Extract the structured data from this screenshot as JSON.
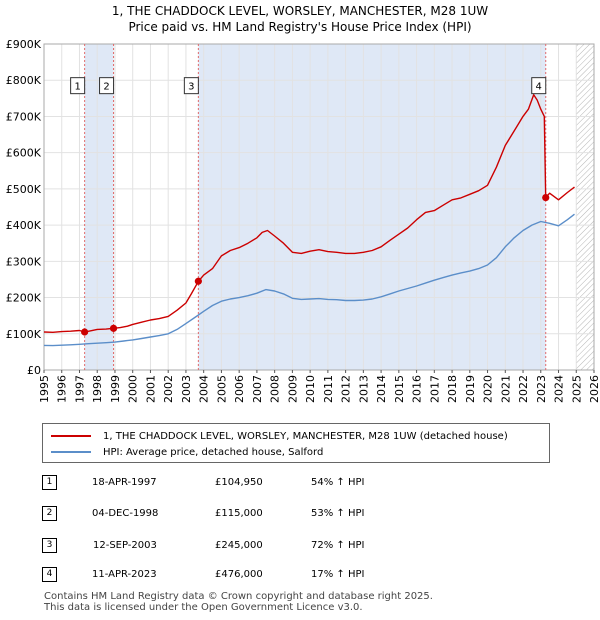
{
  "title_line1": "1, THE CHADDOCK LEVEL, WORSLEY, MANCHESTER, M28 1UW",
  "title_line2": "Price paid vs. HM Land Registry's House Price Index (HPI)",
  "colors": {
    "property": "#cc0000",
    "hpi": "#5b8ec9",
    "shade": "#dfe8f6",
    "vline": "#e06a6a"
  },
  "chart_data": {
    "type": "line",
    "xlim": [
      1995,
      2026
    ],
    "ylim": [
      0,
      900000
    ],
    "x_ticks": [
      "1995",
      "1996",
      "1997",
      "1998",
      "1999",
      "2000",
      "2001",
      "2002",
      "2003",
      "2004",
      "2005",
      "2006",
      "2007",
      "2008",
      "2009",
      "2010",
      "2011",
      "2012",
      "2013",
      "2014",
      "2015",
      "2016",
      "2017",
      "2018",
      "2019",
      "2020",
      "2021",
      "2022",
      "2023",
      "2024",
      "2025",
      "2026"
    ],
    "y_ticks": [
      {
        "value": 0,
        "label": "£0"
      },
      {
        "value": 100000,
        "label": "£100K"
      },
      {
        "value": 200000,
        "label": "£200K"
      },
      {
        "value": 300000,
        "label": "£300K"
      },
      {
        "value": 400000,
        "label": "£400K"
      },
      {
        "value": 500000,
        "label": "£500K"
      },
      {
        "value": 600000,
        "label": "£600K"
      },
      {
        "value": 700000,
        "label": "£700K"
      },
      {
        "value": 800000,
        "label": "£800K"
      },
      {
        "value": 900000,
        "label": "£900K"
      }
    ],
    "shaded_ranges": [
      [
        1997.29,
        1998.92
      ],
      [
        2003.7,
        2023.28
      ]
    ],
    "hatch_from": 2025.0,
    "series": [
      {
        "name": "1, THE CHADDOCK LEVEL, WORSLEY, MANCHESTER, M28 1UW (detached house)",
        "x": [
          1995.0,
          1995.5,
          1996.0,
          1996.5,
          1997.0,
          1997.29,
          1997.6,
          1998.0,
          1998.5,
          1998.92,
          1999.3,
          1999.7,
          2000.0,
          2000.5,
          2001.0,
          2001.5,
          2002.0,
          2002.5,
          2003.0,
          2003.3,
          2003.7,
          2004.0,
          2004.5,
          2005.0,
          2005.5,
          2006.0,
          2006.5,
          2007.0,
          2007.3,
          2007.6,
          2008.0,
          2008.5,
          2009.0,
          2009.5,
          2010.0,
          2010.5,
          2011.0,
          2011.5,
          2012.0,
          2012.5,
          2013.0,
          2013.5,
          2014.0,
          2014.5,
          2015.0,
          2015.5,
          2016.0,
          2016.5,
          2017.0,
          2017.5,
          2018.0,
          2018.5,
          2019.0,
          2019.5,
          2020.0,
          2020.5,
          2021.0,
          2021.5,
          2022.0,
          2022.3,
          2022.6,
          2022.8,
          2023.0,
          2023.2,
          2023.28,
          2023.5,
          2024.0,
          2024.5,
          2024.9
        ],
        "values": [
          105000,
          104000,
          106000,
          107000,
          109000,
          104950,
          108000,
          112000,
          113000,
          115000,
          117000,
          121000,
          126000,
          132000,
          138000,
          142000,
          148000,
          165000,
          185000,
          210000,
          245000,
          262000,
          280000,
          315000,
          330000,
          338000,
          350000,
          365000,
          380000,
          385000,
          370000,
          350000,
          325000,
          322000,
          328000,
          332000,
          327000,
          325000,
          322000,
          322000,
          325000,
          330000,
          340000,
          358000,
          375000,
          392000,
          415000,
          435000,
          440000,
          455000,
          470000,
          475000,
          485000,
          495000,
          510000,
          560000,
          620000,
          660000,
          700000,
          720000,
          760000,
          745000,
          720000,
          700000,
          476000,
          488000,
          470000,
          490000,
          505000
        ]
      },
      {
        "name": "HPI: Average price, detached house, Salford",
        "x": [
          1995.0,
          1995.5,
          1996.0,
          1996.5,
          1997.0,
          1997.5,
          1998.0,
          1998.5,
          1999.0,
          1999.5,
          2000.0,
          2000.5,
          2001.0,
          2001.5,
          2002.0,
          2002.5,
          2003.0,
          2003.5,
          2004.0,
          2004.5,
          2005.0,
          2005.5,
          2006.0,
          2006.5,
          2007.0,
          2007.5,
          2008.0,
          2008.5,
          2009.0,
          2009.5,
          2010.0,
          2010.5,
          2011.0,
          2011.5,
          2012.0,
          2012.5,
          2013.0,
          2013.5,
          2014.0,
          2014.5,
          2015.0,
          2015.5,
          2016.0,
          2016.5,
          2017.0,
          2017.5,
          2018.0,
          2018.5,
          2019.0,
          2019.5,
          2020.0,
          2020.5,
          2021.0,
          2021.5,
          2022.0,
          2022.5,
          2023.0,
          2023.5,
          2024.0,
          2024.5,
          2024.9
        ],
        "values": [
          68000,
          67500,
          68500,
          69500,
          71000,
          72500,
          74000,
          75500,
          77000,
          80000,
          83000,
          87000,
          91000,
          95000,
          100000,
          112000,
          128000,
          145000,
          162000,
          178000,
          190000,
          196000,
          200000,
          205000,
          212000,
          222000,
          218000,
          210000,
          198000,
          195000,
          196000,
          197000,
          195000,
          194000,
          192000,
          192000,
          193000,
          196000,
          202000,
          210000,
          218000,
          225000,
          232000,
          240000,
          248000,
          255000,
          262000,
          268000,
          273000,
          280000,
          290000,
          310000,
          340000,
          365000,
          385000,
          400000,
          410000,
          405000,
          398000,
          415000,
          430000
        ]
      }
    ],
    "sales": [
      {
        "label": "1",
        "x": 1997.29,
        "value": 104950,
        "box_value": 785000
      },
      {
        "label": "2",
        "x": 1998.92,
        "value": 115000,
        "box_value": 785000
      },
      {
        "label": "3",
        "x": 2003.7,
        "value": 245000,
        "box_value": 785000
      },
      {
        "label": "4",
        "x": 2023.28,
        "value": 476000,
        "box_value": 785000
      }
    ]
  },
  "legend": {
    "property": "1, THE CHADDOCK LEVEL, WORSLEY, MANCHESTER, M28 1UW (detached house)",
    "hpi": "HPI: Average price, detached house, Salford"
  },
  "transactions": [
    {
      "num": "1",
      "date": "18-APR-1997",
      "price": "£104,950",
      "hpi": "54% ↑ HPI"
    },
    {
      "num": "2",
      "date": "04-DEC-1998",
      "price": "£115,000",
      "hpi": "53% ↑ HPI"
    },
    {
      "num": "3",
      "date": "12-SEP-2003",
      "price": "£245,000",
      "hpi": "72% ↑ HPI"
    },
    {
      "num": "4",
      "date": "11-APR-2023",
      "price": "£476,000",
      "hpi": "17% ↑ HPI"
    }
  ],
  "footer": {
    "line1": "Contains HM Land Registry data © Crown copyright and database right 2025.",
    "line2": "This data is licensed under the Open Government Licence v3.0."
  }
}
